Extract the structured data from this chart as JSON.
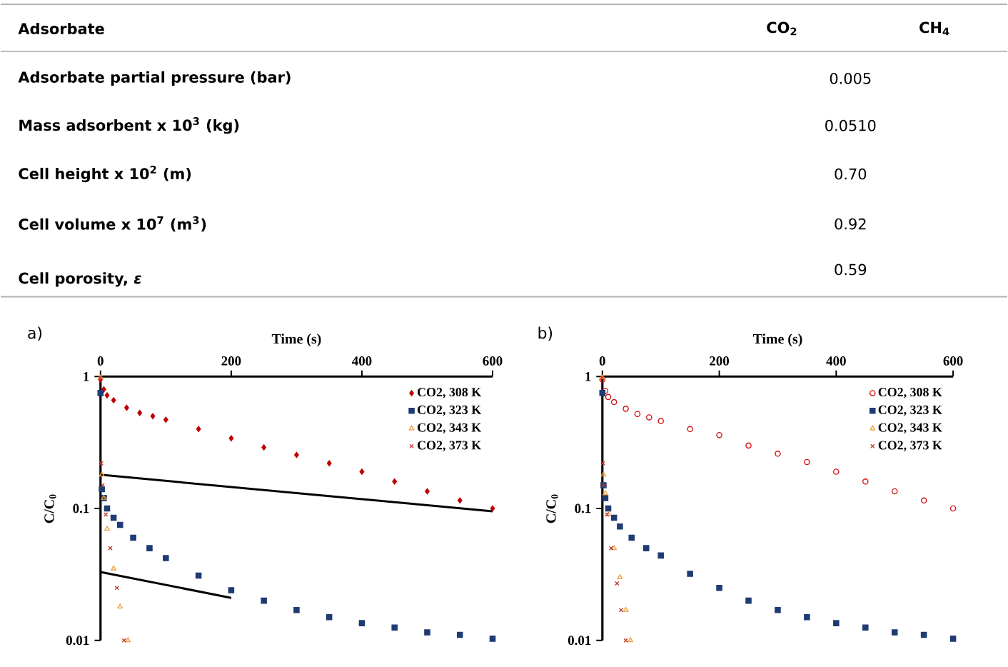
{
  "chart_data": [
    {
      "type": "other",
      "annotations": [
        "Adsorbate",
        "CO$_{2}$",
        "CH$_{4}$",
        "Adsorbate partial pressure (bar)",
        "0.005",
        "Mass adsorbent x 10$^{3}$ (kg)",
        "0.0510",
        "Cell height x 10$^{2}$ (m)",
        "0.70",
        "Cell volume x 10$^{7}$ (m$^{3}$)",
        "0.92",
        "Cell porosity, *ε*",
        "0.59"
      ]
    },
    {
      "type": "scatter",
      "title": "a)",
      "xlabel": "Time (s)",
      "ylabel": "C/C$_{0}$",
      "xlim": [
        0,
        600
      ],
      "xticks": [
        0,
        200,
        400,
        600
      ],
      "ylim": [
        0.01,
        1
      ],
      "yticks": [
        1,
        0.1,
        0.01
      ],
      "log": true,
      "legend": "top right",
      "series": [
        {
          "name": "CO2, 308 K",
          "color": "#c00000",
          "marker": "diamond",
          "x": [
            0,
            5,
            10,
            20,
            40,
            60,
            80,
            100,
            150,
            200,
            250,
            300,
            350,
            400,
            450,
            500,
            550,
            600
          ],
          "values": [
            0.95,
            0.8,
            0.72,
            0.66,
            0.58,
            0.53,
            0.5,
            0.47,
            0.4,
            0.34,
            0.29,
            0.255,
            0.22,
            0.19,
            0.16,
            0.135,
            0.115,
            0.1
          ]
        },
        {
          "name": "CO2, 323 K",
          "color": "#1f3b73",
          "marker": "square",
          "x": [
            0,
            2,
            5,
            10,
            20,
            30,
            50,
            75,
            100,
            150,
            200,
            250,
            300,
            350,
            400,
            450,
            500,
            550,
            600
          ],
          "values": [
            0.75,
            0.14,
            0.12,
            0.1,
            0.085,
            0.075,
            0.06,
            0.05,
            0.042,
            0.031,
            0.024,
            0.02,
            0.017,
            0.015,
            0.0135,
            0.0125,
            0.0115,
            0.011,
            0.0103
          ]
        },
        {
          "name": "CO2, 343 K",
          "color": "#f0a040",
          "marker": "triangle",
          "x": [
            0,
            2,
            5,
            10,
            20,
            30,
            42
          ],
          "values": [
            0.98,
            0.18,
            0.12,
            0.07,
            0.035,
            0.018,
            0.01
          ]
        },
        {
          "name": "CO2, 373 K",
          "color": "#c0392b",
          "marker": "cross",
          "x": [
            0,
            1,
            3,
            8,
            15,
            25,
            36
          ],
          "values": [
            0.98,
            0.22,
            0.15,
            0.09,
            0.05,
            0.025,
            0.01
          ]
        },
        {
          "type": "line",
          "color": "#000000",
          "x": [
            0,
            600
          ],
          "values": [
            0.18,
            0.095
          ]
        },
        {
          "type": "line",
          "color": "#000000",
          "x": [
            0,
            200
          ],
          "values": [
            0.033,
            0.021
          ]
        }
      ]
    },
    {
      "type": "scatter",
      "title": "b)",
      "xlabel": "Time (s)",
      "ylabel": "C/C$_{0}$",
      "xlim": [
        0,
        600
      ],
      "xticks": [
        0,
        200,
        400,
        600
      ],
      "ylim": [
        0.01,
        1
      ],
      "yticks": [
        1,
        0.1,
        0.01
      ],
      "log": true,
      "legend": "top right",
      "series": [
        {
          "name": "CO2, 308 K",
          "color": "#d01010",
          "marker": "circle",
          "x": [
            0,
            5,
            10,
            20,
            40,
            60,
            80,
            100,
            150,
            200,
            250,
            300,
            350,
            400,
            450,
            500,
            550,
            600
          ],
          "values": [
            0.95,
            0.78,
            0.7,
            0.64,
            0.57,
            0.52,
            0.49,
            0.46,
            0.4,
            0.36,
            0.3,
            0.26,
            0.225,
            0.19,
            0.16,
            0.135,
            0.115,
            0.1
          ]
        },
        {
          "name": "CO2, 323 K",
          "color": "#1f3b73",
          "marker": "square",
          "x": [
            0,
            2,
            5,
            10,
            20,
            30,
            50,
            75,
            100,
            150,
            200,
            250,
            300,
            350,
            400,
            450,
            500,
            550,
            600
          ],
          "values": [
            0.75,
            0.15,
            0.12,
            0.1,
            0.085,
            0.073,
            0.06,
            0.05,
            0.044,
            0.032,
            0.025,
            0.02,
            0.017,
            0.015,
            0.0135,
            0.0125,
            0.0115,
            0.011,
            0.0103
          ]
        },
        {
          "name": "CO2, 343 K",
          "color": "#f0a040",
          "marker": "triangle",
          "x": [
            0,
            2,
            5,
            10,
            20,
            30,
            40,
            48
          ],
          "values": [
            0.98,
            0.18,
            0.13,
            0.09,
            0.05,
            0.03,
            0.017,
            0.01
          ]
        },
        {
          "name": "CO2, 373 K",
          "color": "#c0392b",
          "marker": "cross",
          "x": [
            0,
            1,
            3,
            8,
            15,
            25,
            32,
            40
          ],
          "values": [
            0.98,
            0.22,
            0.15,
            0.09,
            0.05,
            0.027,
            0.017,
            0.01
          ]
        }
      ]
    }
  ]
}
